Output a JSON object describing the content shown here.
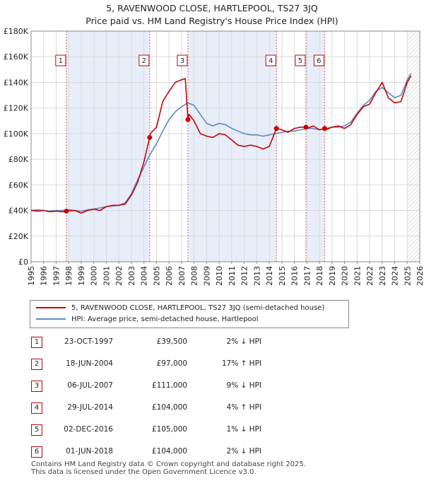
{
  "chart_data": {
    "type": "line",
    "title": "5, RAVENWOOD CLOSE, HARTLEPOOL, TS27 3JQ",
    "subtitle": "Price paid vs. HM Land Registry's House Price Index (HPI)",
    "xlabel": "",
    "ylabel": "",
    "xlim": [
      1995,
      2026
    ],
    "ylim": [
      0,
      180000
    ],
    "y_ticks": [
      "£0",
      "£20K",
      "£40K",
      "£60K",
      "£80K",
      "£100K",
      "£120K",
      "£140K",
      "£160K",
      "£180K"
    ],
    "y_tick_values": [
      0,
      20000,
      40000,
      60000,
      80000,
      100000,
      120000,
      140000,
      160000,
      180000
    ],
    "x_ticks": [
      "1995",
      "1996",
      "1997",
      "1998",
      "1999",
      "2000",
      "2001",
      "2002",
      "2003",
      "2004",
      "2005",
      "2006",
      "2007",
      "2008",
      "2009",
      "2010",
      "2011",
      "2012",
      "2013",
      "2014",
      "2015",
      "2016",
      "2017",
      "2018",
      "2019",
      "2020",
      "2021",
      "2022",
      "2023",
      "2024",
      "2025",
      "2026"
    ],
    "grid": true,
    "legend_position": "below",
    "series": [
      {
        "name": "5, RAVENWOOD CLOSE, HARTLEPOOL, TS27 3JQ (semi-detached house)",
        "color": "#cc0000",
        "x": [
          1995.0,
          1995.5,
          1996.0,
          1996.5,
          1997.0,
          1997.5,
          1997.81,
          1998.5,
          1999.0,
          1999.5,
          2000.0,
          2000.5,
          2001.0,
          2001.5,
          2002.0,
          2002.5,
          2003.0,
          2003.5,
          2004.0,
          2004.46,
          2004.5,
          2005.0,
          2005.5,
          2006.0,
          2006.5,
          2007.0,
          2007.3,
          2007.51,
          2007.6,
          2008.0,
          2008.5,
          2009.0,
          2009.5,
          2010.0,
          2010.5,
          2011.0,
          2011.5,
          2012.0,
          2012.5,
          2013.0,
          2013.5,
          2014.0,
          2014.57,
          2015.0,
          2015.5,
          2016.0,
          2016.5,
          2016.92,
          2017.0,
          2017.5,
          2018.0,
          2018.41,
          2018.5,
          2019.0,
          2019.5,
          2020.0,
          2020.5,
          2021.0,
          2021.5,
          2022.0,
          2022.5,
          2023.0,
          2023.5,
          2024.0,
          2024.5,
          2025.0,
          2025.3
        ],
        "y": [
          40000,
          39500,
          40000,
          39000,
          39500,
          39000,
          39500,
          40000,
          38000,
          40000,
          41000,
          40000,
          43000,
          44000,
          44000,
          45000,
          52000,
          62000,
          78000,
          97000,
          100000,
          105000,
          125000,
          133000,
          140000,
          142000,
          143000,
          111000,
          115000,
          110000,
          100000,
          98000,
          97000,
          100000,
          99000,
          95000,
          91000,
          90000,
          91000,
          90000,
          88000,
          90000,
          104000,
          103000,
          101000,
          104000,
          105000,
          105000,
          104000,
          106000,
          103000,
          104000,
          103000,
          105000,
          106000,
          104000,
          107000,
          115000,
          121000,
          123000,
          132000,
          140000,
          128000,
          124000,
          125000,
          140000,
          145000
        ]
      },
      {
        "name": "HPI: Average price, semi-detached house, Hartlepool",
        "color": "#5a8ac6",
        "x": [
          1995.0,
          1995.5,
          1996.0,
          1996.5,
          1997.0,
          1997.5,
          1998.0,
          1998.5,
          1999.0,
          1999.5,
          2000.0,
          2000.5,
          2001.0,
          2001.5,
          2002.0,
          2002.5,
          2003.0,
          2003.5,
          2004.0,
          2004.5,
          2005.0,
          2005.5,
          2006.0,
          2006.5,
          2007.0,
          2007.5,
          2008.0,
          2008.5,
          2009.0,
          2009.5,
          2010.0,
          2010.5,
          2011.0,
          2011.5,
          2012.0,
          2012.5,
          2013.0,
          2013.5,
          2014.0,
          2014.5,
          2015.0,
          2015.5,
          2016.0,
          2016.5,
          2017.0,
          2017.5,
          2018.0,
          2018.5,
          2019.0,
          2019.5,
          2020.0,
          2020.5,
          2021.0,
          2021.5,
          2022.0,
          2022.5,
          2023.0,
          2023.5,
          2024.0,
          2024.5,
          2025.0,
          2025.3
        ],
        "y": [
          40000,
          40500,
          40000,
          39500,
          40000,
          40000,
          40500,
          40000,
          39500,
          40500,
          41000,
          42000,
          43000,
          43500,
          44000,
          46000,
          53000,
          64000,
          74000,
          84000,
          92000,
          102000,
          111000,
          117000,
          121000,
          124000,
          122000,
          115000,
          108000,
          106000,
          108000,
          107000,
          104000,
          102000,
          100000,
          99000,
          99000,
          98000,
          99000,
          100000,
          101000,
          102000,
          102000,
          103000,
          104000,
          104000,
          103000,
          104000,
          105000,
          105000,
          106000,
          109000,
          116000,
          122000,
          126000,
          133000,
          136000,
          132000,
          128000,
          130000,
          142000,
          147000
        ]
      }
    ],
    "sales": [
      {
        "label": "1",
        "x": 1997.81,
        "y": 39500
      },
      {
        "label": "2",
        "x": 2004.46,
        "y": 97000
      },
      {
        "label": "3",
        "x": 2007.51,
        "y": 111000
      },
      {
        "label": "4",
        "x": 2014.57,
        "y": 104000
      },
      {
        "label": "5",
        "x": 2016.92,
        "y": 105000
      },
      {
        "label": "6",
        "x": 2018.41,
        "y": 104000
      }
    ],
    "shaded_spans": [
      [
        1997.81,
        2004.46
      ],
      [
        2007.51,
        2014.57
      ],
      [
        2016.92,
        2018.41
      ]
    ],
    "forecast_from": 2025.0
  },
  "legend": {
    "property": "5, RAVENWOOD CLOSE, HARTLEPOOL, TS27 3JQ (semi-detached house)",
    "hpi": "HPI: Average price, semi-detached house, Hartlepool",
    "property_color": "#cc0000",
    "hpi_color": "#5a8ac6"
  },
  "table": [
    {
      "num": "1",
      "date": "23-OCT-1997",
      "price": "£39,500",
      "delta": "2% ↓ HPI"
    },
    {
      "num": "2",
      "date": "18-JUN-2004",
      "price": "£97,000",
      "delta": "17% ↑ HPI"
    },
    {
      "num": "3",
      "date": "06-JUL-2007",
      "price": "£111,000",
      "delta": "9% ↓ HPI"
    },
    {
      "num": "4",
      "date": "29-JUL-2014",
      "price": "£104,000",
      "delta": "4% ↑ HPI"
    },
    {
      "num": "5",
      "date": "02-DEC-2016",
      "price": "£105,000",
      "delta": "1% ↓ HPI"
    },
    {
      "num": "6",
      "date": "01-JUN-2018",
      "price": "£104,000",
      "delta": "2% ↓ HPI"
    }
  ],
  "footer": {
    "line1": "Contains HM Land Registry data © Crown copyright and database right 2025.",
    "line2": "This data is licensed under the Open Government Licence v3.0."
  }
}
